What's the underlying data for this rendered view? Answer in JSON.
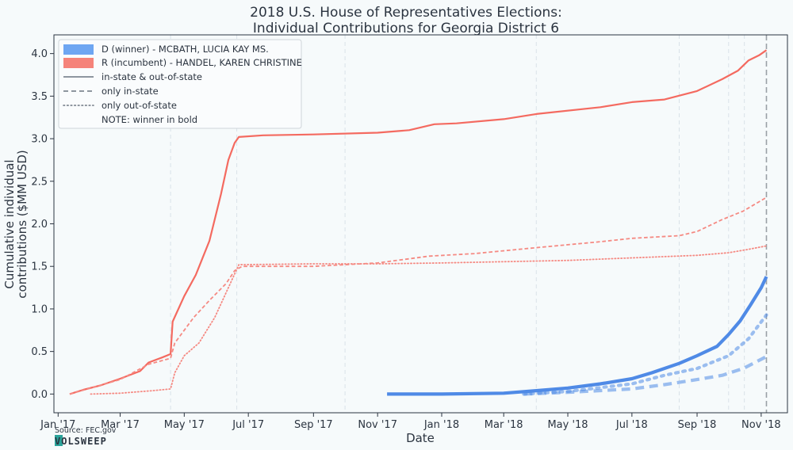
{
  "chart_data": {
    "type": "line",
    "title_line1": "2018 U.S. House of Representatives Elections:",
    "title_line2": "Individual Contributions for Georgia District 6",
    "xlabel": "Date",
    "ylabel_line1": "Cumulative individual",
    "ylabel_line2": "contributions ($MM USD)",
    "xlim": [
      "2016-12-28",
      "2018-11-26"
    ],
    "ylim": [
      -0.22,
      4.22
    ],
    "x_ticks": [
      {
        "date": "2017-01-01",
        "label": "Jan '17"
      },
      {
        "date": "2017-03-01",
        "label": "Mar '17"
      },
      {
        "date": "2017-05-01",
        "label": "May '17"
      },
      {
        "date": "2017-07-01",
        "label": "Jul '17"
      },
      {
        "date": "2017-09-01",
        "label": "Sep '17"
      },
      {
        "date": "2017-11-01",
        "label": "Nov '17"
      },
      {
        "date": "2018-01-01",
        "label": "Jan '18"
      },
      {
        "date": "2018-03-01",
        "label": "Mar '18"
      },
      {
        "date": "2018-05-01",
        "label": "May '18"
      },
      {
        "date": "2018-07-01",
        "label": "Jul '18"
      },
      {
        "date": "2018-09-01",
        "label": "Sep '18"
      },
      {
        "date": "2018-11-01",
        "label": "Nov '18"
      }
    ],
    "y_ticks": [
      {
        "value": 0.0,
        "label": "0.0"
      },
      {
        "value": 0.5,
        "label": "0.5"
      },
      {
        "value": 1.0,
        "label": "1.0"
      },
      {
        "value": 1.5,
        "label": "1.5"
      },
      {
        "value": 2.0,
        "label": "2.0"
      },
      {
        "value": 2.5,
        "label": "2.5"
      },
      {
        "value": 3.0,
        "label": "3.0"
      },
      {
        "value": 3.5,
        "label": "3.5"
      },
      {
        "value": 4.0,
        "label": "4.0"
      }
    ],
    "vertical_guides": [
      "2017-04-18",
      "2017-06-20",
      "2017-10-01",
      "2018-04-01",
      "2018-08-15",
      "2018-10-01",
      "2018-10-16"
    ],
    "election_date": "2018-11-06",
    "grid": false,
    "legend_placement": "top-left",
    "legend": [
      {
        "label": "D (winner) - MCBATH, LUCIA KAY MS.",
        "kind": "patch",
        "color": "#6ea6f2"
      },
      {
        "label": "R (incumbent) - HANDEL, KAREN CHRISTINE",
        "kind": "patch",
        "color": "#f5837a"
      },
      {
        "label": "in-state & out-of-state",
        "kind": "line",
        "style": "solid"
      },
      {
        "label": "only in-state",
        "kind": "line",
        "style": "dashed"
      },
      {
        "label": "only out-of-state",
        "kind": "line",
        "style": "dotted"
      },
      {
        "label": "NOTE: winner in bold",
        "kind": "text"
      }
    ],
    "series": [
      {
        "party": "R",
        "scope": "all",
        "style": "solid",
        "color": "#f46a60",
        "width": 2.2,
        "opacity": 1,
        "points": [
          [
            "2017-01-12",
            0.0
          ],
          [
            "2017-01-25",
            0.05
          ],
          [
            "2017-02-10",
            0.1
          ],
          [
            "2017-03-01",
            0.18
          ],
          [
            "2017-03-20",
            0.27
          ],
          [
            "2017-03-28",
            0.37
          ],
          [
            "2017-04-10",
            0.43
          ],
          [
            "2017-04-18",
            0.47
          ],
          [
            "2017-04-20",
            0.85
          ],
          [
            "2017-05-01",
            1.15
          ],
          [
            "2017-05-12",
            1.4
          ],
          [
            "2017-05-25",
            1.8
          ],
          [
            "2017-06-05",
            2.35
          ],
          [
            "2017-06-12",
            2.75
          ],
          [
            "2017-06-18",
            2.95
          ],
          [
            "2017-06-22",
            3.02
          ],
          [
            "2017-07-15",
            3.04
          ],
          [
            "2017-09-01",
            3.05
          ],
          [
            "2017-11-01",
            3.07
          ],
          [
            "2017-12-01",
            3.1
          ],
          [
            "2017-12-25",
            3.17
          ],
          [
            "2018-01-15",
            3.18
          ],
          [
            "2018-03-01",
            3.23
          ],
          [
            "2018-04-01",
            3.29
          ],
          [
            "2018-06-01",
            3.37
          ],
          [
            "2018-07-01",
            3.43
          ],
          [
            "2018-08-01",
            3.46
          ],
          [
            "2018-09-01",
            3.56
          ],
          [
            "2018-09-25",
            3.7
          ],
          [
            "2018-10-10",
            3.8
          ],
          [
            "2018-10-20",
            3.92
          ],
          [
            "2018-10-30",
            3.98
          ],
          [
            "2018-11-06",
            4.04
          ]
        ]
      },
      {
        "party": "R",
        "scope": "in-state",
        "style": "dashed",
        "color": "#f58a83",
        "width": 1.8,
        "opacity": 1,
        "points": [
          [
            "2017-01-12",
            0.0
          ],
          [
            "2017-02-01",
            0.07
          ],
          [
            "2017-03-01",
            0.17
          ],
          [
            "2017-03-28",
            0.35
          ],
          [
            "2017-04-18",
            0.42
          ],
          [
            "2017-04-22",
            0.6
          ],
          [
            "2017-05-10",
            0.9
          ],
          [
            "2017-05-25",
            1.1
          ],
          [
            "2017-06-10",
            1.3
          ],
          [
            "2017-06-18",
            1.45
          ],
          [
            "2017-06-25",
            1.5
          ],
          [
            "2017-09-01",
            1.5
          ],
          [
            "2017-11-01",
            1.54
          ],
          [
            "2017-12-20",
            1.62
          ],
          [
            "2018-02-01",
            1.65
          ],
          [
            "2018-04-01",
            1.72
          ],
          [
            "2018-06-01",
            1.79
          ],
          [
            "2018-07-01",
            1.83
          ],
          [
            "2018-08-15",
            1.86
          ],
          [
            "2018-09-01",
            1.91
          ],
          [
            "2018-09-25",
            2.05
          ],
          [
            "2018-10-15",
            2.15
          ],
          [
            "2018-11-06",
            2.31
          ]
        ]
      },
      {
        "party": "R",
        "scope": "out-of-state",
        "style": "dotted",
        "color": "#f58a83",
        "width": 1.8,
        "opacity": 1,
        "points": [
          [
            "2017-02-01",
            0.0
          ],
          [
            "2017-03-01",
            0.01
          ],
          [
            "2017-04-01",
            0.04
          ],
          [
            "2017-04-18",
            0.06
          ],
          [
            "2017-04-22",
            0.25
          ],
          [
            "2017-05-01",
            0.45
          ],
          [
            "2017-05-15",
            0.6
          ],
          [
            "2017-05-30",
            0.9
          ],
          [
            "2017-06-12",
            1.25
          ],
          [
            "2017-06-22",
            1.52
          ],
          [
            "2017-09-01",
            1.53
          ],
          [
            "2017-11-01",
            1.53
          ],
          [
            "2018-01-01",
            1.54
          ],
          [
            "2018-05-01",
            1.57
          ],
          [
            "2018-07-01",
            1.6
          ],
          [
            "2018-09-01",
            1.63
          ],
          [
            "2018-10-01",
            1.66
          ],
          [
            "2018-10-20",
            1.7
          ],
          [
            "2018-11-06",
            1.74
          ]
        ]
      },
      {
        "party": "D",
        "scope": "all",
        "style": "solid",
        "color": "#4f8ae6",
        "width": 4.2,
        "opacity": 1,
        "points": [
          [
            "2017-11-10",
            0.0
          ],
          [
            "2018-01-01",
            0.0
          ],
          [
            "2018-03-01",
            0.01
          ],
          [
            "2018-04-01",
            0.04
          ],
          [
            "2018-05-01",
            0.07
          ],
          [
            "2018-06-01",
            0.12
          ],
          [
            "2018-07-01",
            0.18
          ],
          [
            "2018-07-20",
            0.25
          ],
          [
            "2018-08-15",
            0.36
          ],
          [
            "2018-09-01",
            0.45
          ],
          [
            "2018-09-20",
            0.56
          ],
          [
            "2018-10-01",
            0.7
          ],
          [
            "2018-10-12",
            0.86
          ],
          [
            "2018-10-22",
            1.05
          ],
          [
            "2018-11-01",
            1.25
          ],
          [
            "2018-11-06",
            1.38
          ]
        ]
      },
      {
        "party": "D",
        "scope": "in-state",
        "style": "dashed",
        "color": "#4f8ae6",
        "width": 4.2,
        "opacity": 0.55,
        "points": [
          [
            "2018-03-20",
            0.0
          ],
          [
            "2018-05-01",
            0.02
          ],
          [
            "2018-07-01",
            0.06
          ],
          [
            "2018-08-01",
            0.11
          ],
          [
            "2018-09-01",
            0.17
          ],
          [
            "2018-09-25",
            0.22
          ],
          [
            "2018-10-15",
            0.3
          ],
          [
            "2018-11-06",
            0.44
          ]
        ]
      },
      {
        "party": "D",
        "scope": "out-of-state",
        "style": "dotted",
        "color": "#4f8ae6",
        "width": 4.2,
        "opacity": 0.55,
        "points": [
          [
            "2018-03-20",
            0.0
          ],
          [
            "2018-05-01",
            0.03
          ],
          [
            "2018-07-01",
            0.12
          ],
          [
            "2018-08-01",
            0.22
          ],
          [
            "2018-09-01",
            0.3
          ],
          [
            "2018-10-01",
            0.45
          ],
          [
            "2018-10-20",
            0.65
          ],
          [
            "2018-11-06",
            0.93
          ]
        ]
      }
    ]
  },
  "source_label": "Source: FEC.gov",
  "logo_text": "VOLSWEEP"
}
